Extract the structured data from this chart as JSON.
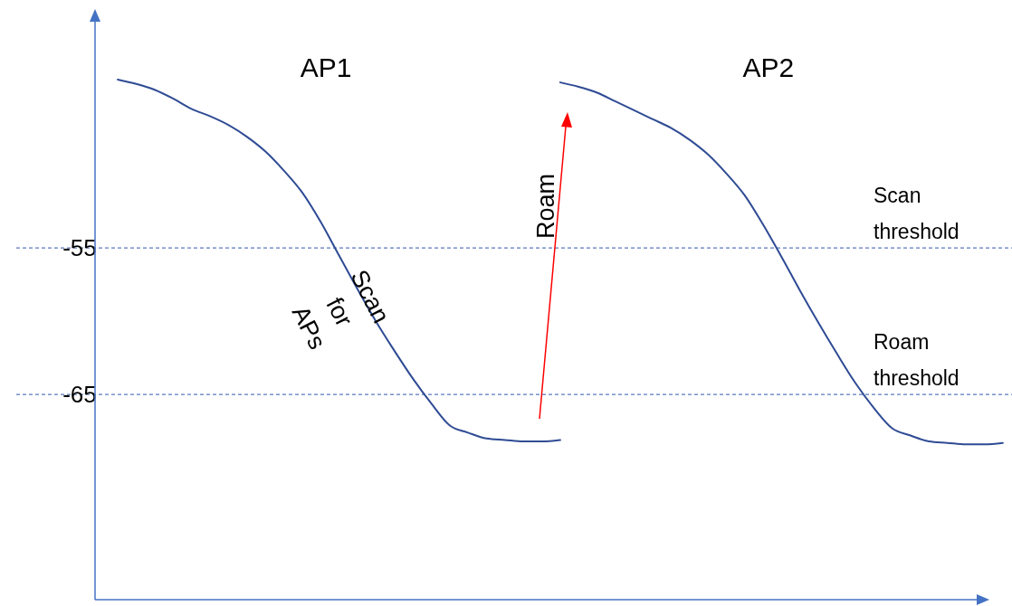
{
  "chart_data": {
    "type": "line",
    "categories": [
      null,
      null,
      null,
      null,
      null,
      null,
      null,
      null,
      null,
      null,
      null,
      null,
      null,
      null,
      null,
      null,
      null,
      null,
      null,
      null,
      null,
      null,
      null,
      null,
      null,
      null,
      null,
      null,
      null,
      null,
      null,
      null,
      null,
      null,
      null,
      null,
      null,
      null,
      null,
      null,
      null,
      null,
      null,
      null,
      null,
      null,
      null,
      null,
      null,
      null,
      null,
      null,
      null,
      null
    ],
    "series": [
      {
        "name": "AP1",
        "color": "#2f4b94",
        "values": [
          null,
          null,
          null,
          null,
          null,
          -43.5,
          -43.8,
          -44.2,
          -44.8,
          -45.5,
          -46.0,
          -46.6,
          -47.4,
          -48.4,
          -49.7,
          -51.2,
          -53.2,
          -55.5,
          -57.8,
          -60.0,
          -62.0,
          -63.9,
          -65.6,
          -67.1,
          -67.6,
          -68.0,
          -68.1,
          -68.2,
          -68.2,
          -68.1,
          null,
          null,
          null,
          null,
          null,
          null,
          null,
          null,
          null,
          null,
          null,
          null,
          null,
          null,
          null,
          null,
          null,
          null,
          null,
          null,
          null,
          null,
          null,
          null
        ]
      },
      {
        "name": "AP2",
        "color": "#2f4b94",
        "values": [
          null,
          null,
          null,
          null,
          null,
          null,
          null,
          null,
          null,
          null,
          null,
          null,
          null,
          null,
          null,
          null,
          null,
          null,
          null,
          null,
          null,
          null,
          null,
          null,
          null,
          null,
          null,
          null,
          null,
          -43.7,
          -44.0,
          -44.4,
          -45.0,
          -45.6,
          -46.2,
          -46.8,
          -47.6,
          -48.6,
          -49.9,
          -51.4,
          -53.4,
          -55.6,
          -57.9,
          -60.1,
          -62.2,
          -64.2,
          -65.9,
          -67.3,
          -67.8,
          -68.2,
          -68.3,
          -68.4,
          -68.4,
          -68.3
        ]
      }
    ],
    "ylim": [
      -79,
      -39
    ],
    "yticks": [
      -55,
      -65
    ],
    "tick_labels": "y",
    "grid": false,
    "legend": false,
    "marker": "none",
    "line_style": "solid",
    "ref_lines": [
      {
        "axis": "y",
        "value": -55,
        "label": "Scan threshold",
        "color": "#5a7bbf",
        "line_style": "dashed"
      },
      {
        "axis": "y",
        "value": -65,
        "label": "Roam threshold",
        "color": "#5a7bbf",
        "line_style": "dashed"
      }
    ],
    "annotations": [
      "Scan for APs",
      "Roam"
    ]
  }
}
